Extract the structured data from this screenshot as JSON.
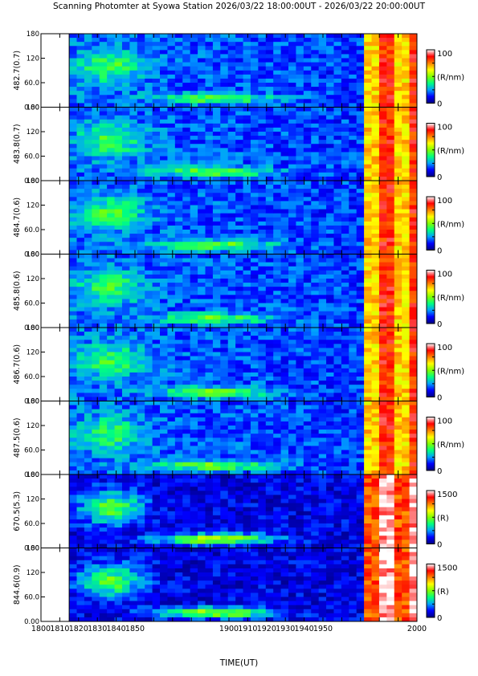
{
  "chart_data": {
    "type": "heatmap",
    "title": "Scanning Photomter at Syowa Station 2026/03/22 18:00:00UT - 2026/03/22 20:00:00UT",
    "xlabel": "TIME(UT)",
    "xlim": [
      1800,
      2000
    ],
    "x_ticks": [
      "1800",
      "1810",
      "1820",
      "1830",
      "1840",
      "1850",
      "1860",
      "1870",
      "1880",
      "1890",
      "1900",
      "1910",
      "1920",
      "1930",
      "1940",
      "1950",
      "1960",
      "1970",
      "1980",
      "1990",
      "2000"
    ],
    "x_tick_labels": [
      "1800",
      "1810",
      "1820",
      "1830",
      "1840",
      "1850",
      "1900",
      "1910",
      "1920",
      "1930",
      "1940",
      "1950",
      "2000"
    ],
    "data_start_x": 1815,
    "ylim": [
      0,
      180
    ],
    "y_tick_labels": [
      "0.00",
      "60.0",
      "120",
      "180"
    ],
    "panels": [
      {
        "label": "482.7(0.7)",
        "colorbar_max": "100",
        "colorbar_min": "0",
        "unit": "(R/nm)",
        "scale": "low"
      },
      {
        "label": "483.8(0.7)",
        "colorbar_max": "100",
        "colorbar_min": "0",
        "unit": "(R/nm)",
        "scale": "low"
      },
      {
        "label": "484.7(0.6)",
        "colorbar_max": "100",
        "colorbar_min": "0",
        "unit": "(R/nm)",
        "scale": "low"
      },
      {
        "label": "485.8(0.6)",
        "colorbar_max": "100",
        "colorbar_min": "0",
        "unit": "(R/nm)",
        "scale": "low"
      },
      {
        "label": "486.7(0.6)",
        "colorbar_max": "100",
        "colorbar_min": "0",
        "unit": "(R/nm)",
        "scale": "low"
      },
      {
        "label": "487.5(0.6)",
        "colorbar_max": "100",
        "colorbar_min": "0",
        "unit": "(R/nm)",
        "scale": "low"
      },
      {
        "label": "670.5(5.3)",
        "colorbar_max": "1500",
        "colorbar_min": "0",
        "unit": "(R)",
        "scale": "high"
      },
      {
        "label": "844.6(0.9)",
        "colorbar_max": "1500",
        "colorbar_min": "0",
        "unit": "(R)",
        "scale": "high"
      }
    ],
    "colormap": [
      "#000080",
      "#0000ff",
      "#00a0ff",
      "#00ff80",
      "#80ff00",
      "#ffff00",
      "#ff8000",
      "#ff0000",
      "#ffffff"
    ]
  }
}
